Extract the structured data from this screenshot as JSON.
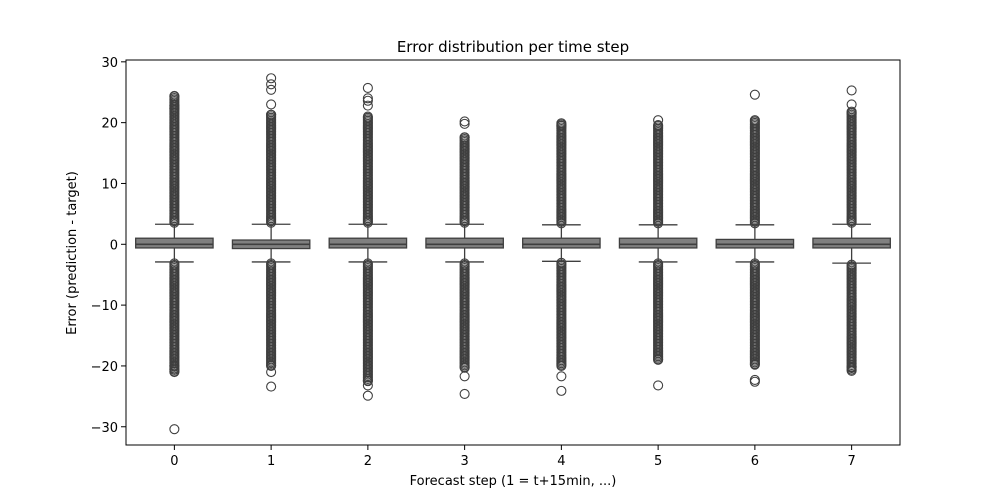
{
  "chart_data": {
    "type": "box",
    "title": "Error distribution per time step",
    "xlabel": "Forecast step (1 = t+15min, ...)",
    "ylabel": "Error (prediction - target)",
    "categories": [
      "0",
      "1",
      "2",
      "3",
      "4",
      "5",
      "6",
      "7"
    ],
    "ylim": [
      -33,
      30.3
    ],
    "yticks": [
      -30,
      -20,
      -10,
      0,
      10,
      20,
      30
    ],
    "ytick_labels": [
      "−30",
      "−20",
      "−10",
      "0",
      "10",
      "20",
      "30"
    ],
    "box_color": "#808080",
    "edge_color": "#3f3f3f",
    "grid": false,
    "boxes": [
      {
        "q1": -0.6,
        "median": 0.0,
        "q3": 1.0,
        "whisker_low": -2.9,
        "whisker_high": 3.3,
        "outlier_high_max": 24.4,
        "outlier_low_min": -21.0,
        "extra_outliers": [
          -30.4,
          22.8,
          22.3,
          -20.0,
          -20.6
        ]
      },
      {
        "q1": -0.7,
        "median": 0.0,
        "q3": 0.7,
        "whisker_low": -2.9,
        "whisker_high": 3.3,
        "outlier_high_max": 21.3,
        "outlier_low_min": -20.0,
        "extra_outliers": [
          27.3,
          26.3,
          25.4,
          23.0,
          -23.4,
          -21.0
        ]
      },
      {
        "q1": -0.6,
        "median": 0.0,
        "q3": 1.0,
        "whisker_low": -2.9,
        "whisker_high": 3.3,
        "outlier_high_max": 21.0,
        "outlier_low_min": -22.5,
        "extra_outliers": [
          25.7,
          24.0,
          23.6,
          22.8,
          -23.2,
          -24.9
        ]
      },
      {
        "q1": -0.6,
        "median": 0.0,
        "q3": 1.0,
        "whisker_low": -2.9,
        "whisker_high": 3.3,
        "outlier_high_max": 17.6,
        "outlier_low_min": -20.3,
        "extra_outliers": [
          20.2,
          19.8,
          -21.7,
          -24.6
        ]
      },
      {
        "q1": -0.6,
        "median": 0.0,
        "q3": 1.0,
        "whisker_low": -2.8,
        "whisker_high": 3.2,
        "outlier_high_max": 19.9,
        "outlier_low_min": -20.0,
        "extra_outliers": [
          19.5,
          -21.7,
          -24.1
        ]
      },
      {
        "q1": -0.6,
        "median": 0.0,
        "q3": 1.0,
        "whisker_low": -2.9,
        "whisker_high": 3.2,
        "outlier_high_max": 19.6,
        "outlier_low_min": -19.0,
        "extra_outliers": [
          20.4,
          -23.2
        ]
      },
      {
        "q1": -0.6,
        "median": 0.0,
        "q3": 0.8,
        "whisker_low": -2.9,
        "whisker_high": 3.2,
        "outlier_high_max": 20.4,
        "outlier_low_min": -19.8,
        "extra_outliers": [
          24.6,
          -22.3,
          -22.6
        ]
      },
      {
        "q1": -0.6,
        "median": 0.0,
        "q3": 1.0,
        "whisker_low": -3.1,
        "whisker_high": 3.3,
        "outlier_high_max": 21.6,
        "outlier_low_min": -20.8,
        "extra_outliers": [
          25.3,
          23.0,
          21.8,
          -20.2
        ]
      }
    ]
  }
}
